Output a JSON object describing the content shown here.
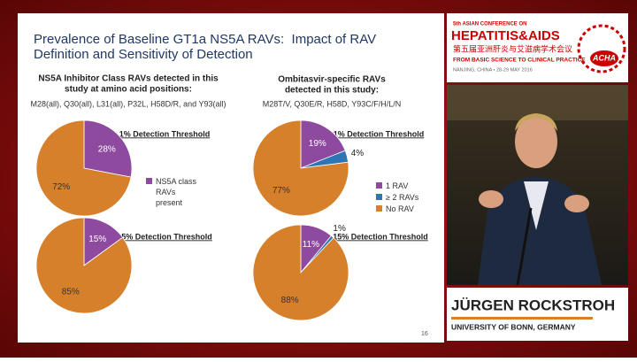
{
  "slide": {
    "title": [
      "Prevalence of Baseline GT1a NS5A RAVs:  Impact of RAV",
      "Definition and Sensitivity of Detection"
    ],
    "left_heading": [
      "NS5A Inhibitor Class RAVs detected in this",
      "study at amino acid positions:"
    ],
    "left_positions": "M28(all), Q30(all), L31(all), P32L, H58D/R, and Y93(all)",
    "right_heading": [
      "Ombitasvir-specific RAVs",
      "detected in this study:"
    ],
    "right_positions": "M28T/V, Q30E/R, H58D, Y93C/F/H/L/N",
    "page_number": "16"
  },
  "conference": {
    "edition": "5th ASIAN CONFERENCE ON",
    "name": "HEPATITIS&AIDS",
    "name_cn": "第五届亚洲肝炎与艾滋病学术会议",
    "tagline": "FROM BASIC SCIENCE TO CLINICAL PRACTICE",
    "place": "NANJING, CHINA • 28-29 MAY 2016",
    "logo": "ACHA"
  },
  "speaker": {
    "name": "JÜRGEN ROCKSTROH",
    "affiliation": "UNIVERSITY OF BONN, GERMANY"
  },
  "chart_data": [
    {
      "type": "pie",
      "title": "1% Detection Threshold",
      "categories": [
        "NS5A class RAVs present",
        null
      ],
      "values": [
        28,
        72
      ],
      "value_labels": [
        "28%",
        "72%"
      ],
      "colors": [
        "#8e4a9e",
        "#d6802b"
      ]
    },
    {
      "type": "pie",
      "title": "15% Detection Threshold",
      "categories": [
        null,
        null
      ],
      "values": [
        15,
        85
      ],
      "value_labels": [
        "15%",
        "85%"
      ],
      "colors": [
        "#8e4a9e",
        "#d6802b"
      ]
    },
    {
      "type": "pie",
      "title": "1% Detection Threshold",
      "categories": [
        "1 RAV",
        "≥ 2 RAVs",
        "No RAV"
      ],
      "values": [
        19,
        4,
        77
      ],
      "value_labels": [
        "19%",
        "4%",
        "77%"
      ],
      "colors": [
        "#8e4a9e",
        "#2e75b6",
        "#d6802b"
      ]
    },
    {
      "type": "pie",
      "title": "15% Detection Threshold",
      "categories": [
        null,
        null,
        null
      ],
      "values": [
        11,
        1,
        88
      ],
      "value_labels": [
        "11%",
        "1%",
        "88%"
      ],
      "colors": [
        "#8e4a9e",
        "#2e75b6",
        "#d6802b"
      ]
    }
  ]
}
